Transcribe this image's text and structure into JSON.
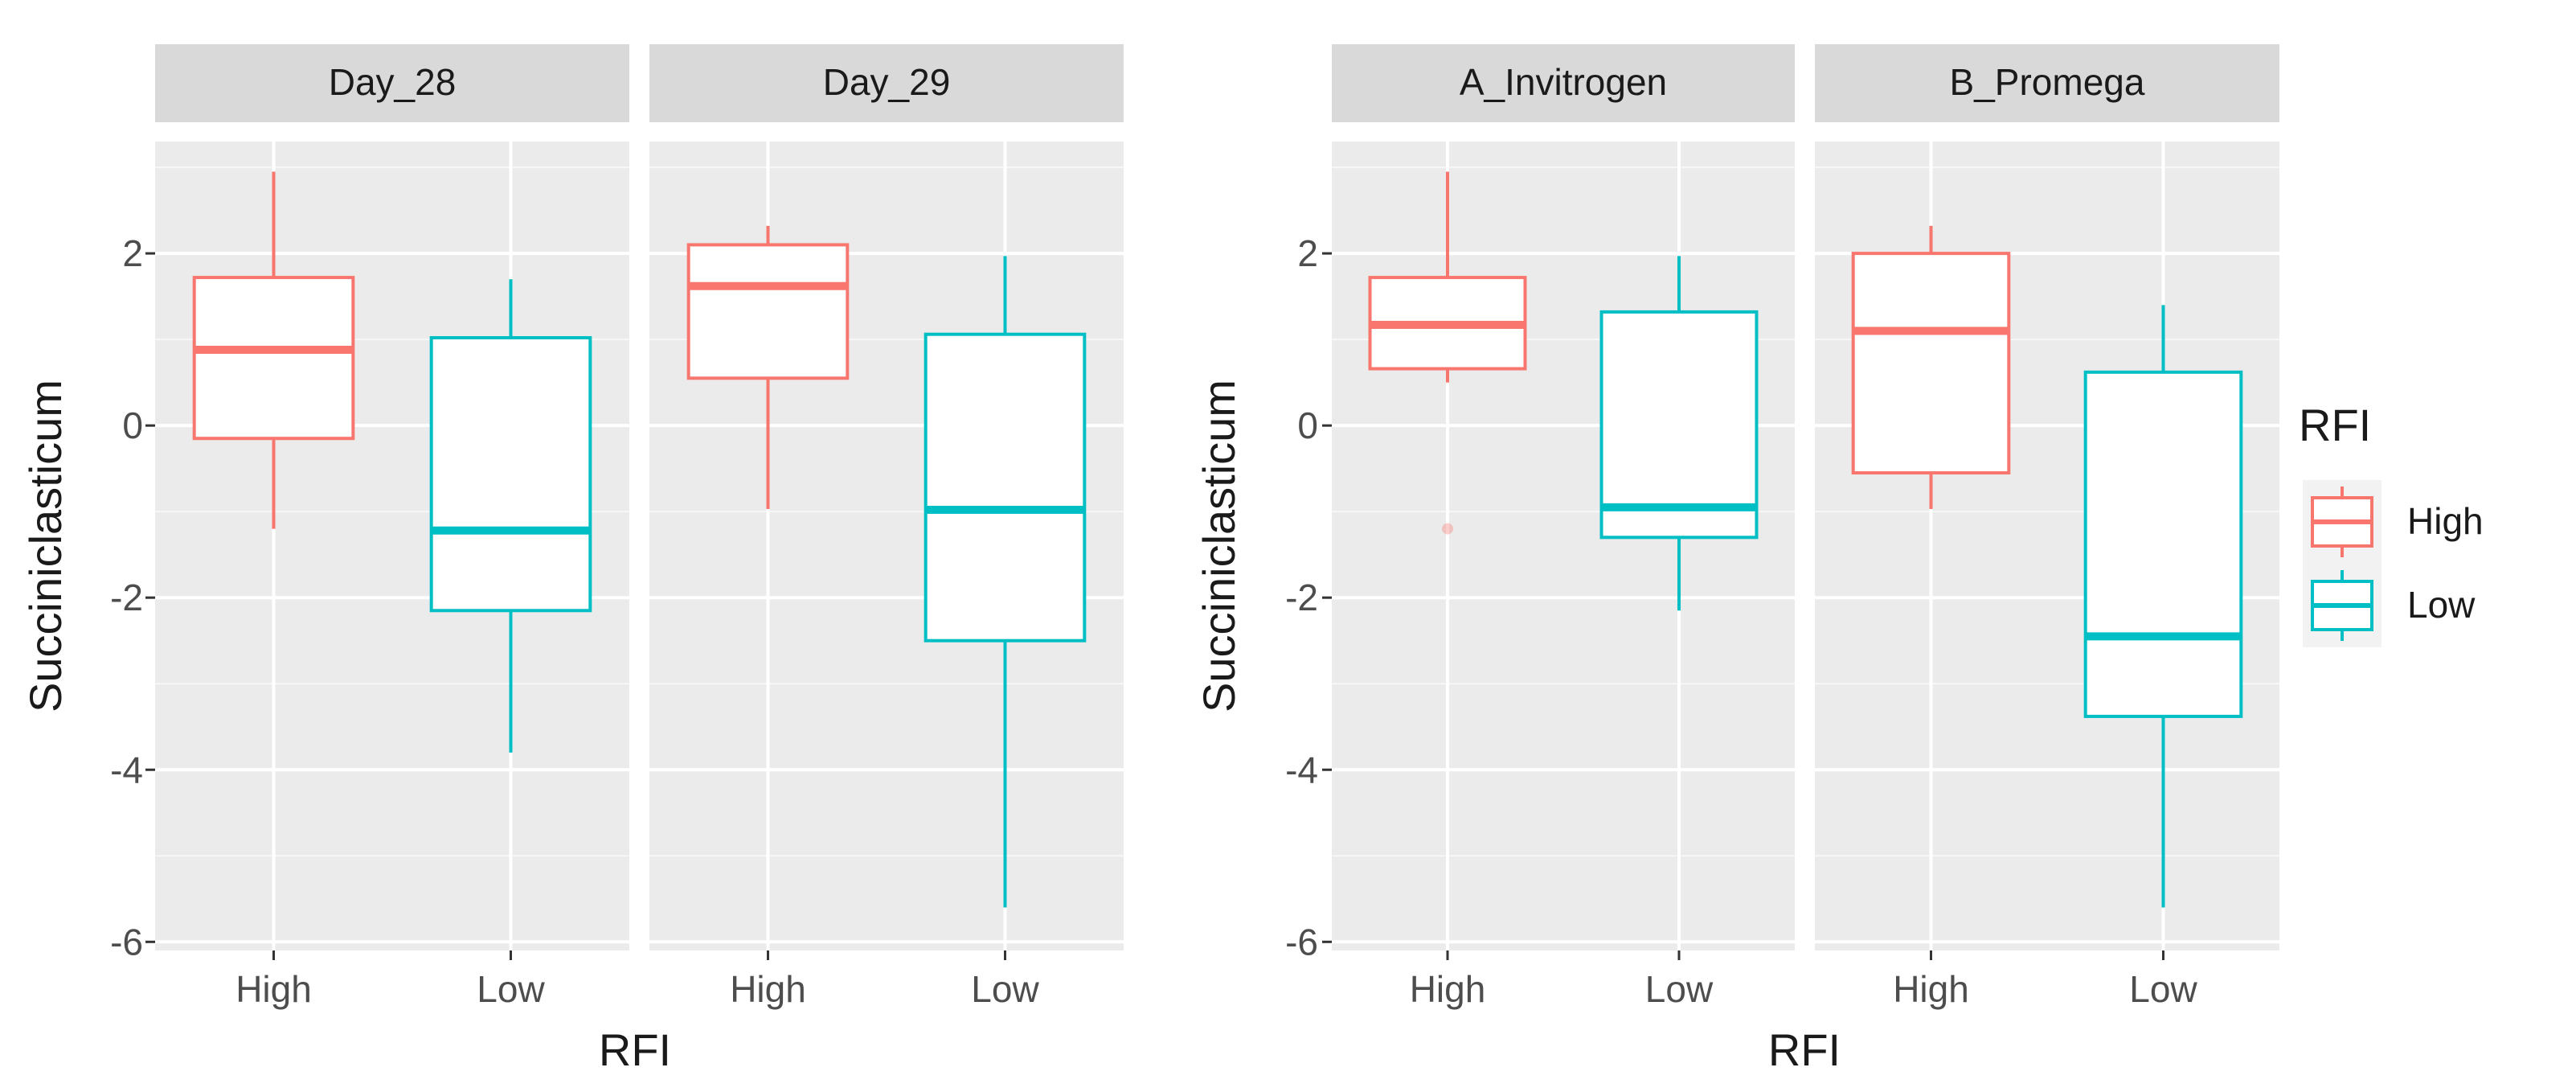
{
  "chart_data": [
    {
      "type": "boxplot",
      "ylabel": "Succiniclasticum",
      "xlabel": "RFI",
      "y_ticks": [
        "2",
        "0",
        "-2",
        "-4",
        "-6"
      ],
      "ylim": [
        -6.1,
        3.3
      ],
      "facets": [
        {
          "strip": "Day_28",
          "categories": [
            "High",
            "Low"
          ],
          "boxes": [
            {
              "group": "High",
              "min": -1.2,
              "q1": -0.15,
              "median": 0.88,
              "q3": 1.72,
              "max": 2.95
            },
            {
              "group": "Low",
              "min": -3.8,
              "q1": -2.15,
              "median": -1.22,
              "q3": 1.02,
              "max": 1.7
            }
          ]
        },
        {
          "strip": "Day_29",
          "categories": [
            "High",
            "Low"
          ],
          "boxes": [
            {
              "group": "High",
              "min": -0.97,
              "q1": 0.55,
              "median": 1.62,
              "q3": 2.1,
              "max": 2.32
            },
            {
              "group": "Low",
              "min": -5.6,
              "q1": -2.5,
              "median": -0.98,
              "q3": 1.06,
              "max": 1.97
            }
          ]
        }
      ]
    },
    {
      "type": "boxplot",
      "ylabel": "Succiniclasticum",
      "xlabel": "RFI",
      "y_ticks": [
        "2",
        "0",
        "-2",
        "-4",
        "-6"
      ],
      "ylim": [
        -6.1,
        3.3
      ],
      "facets": [
        {
          "strip": "A_Invitrogen",
          "categories": [
            "High",
            "Low"
          ],
          "boxes": [
            {
              "group": "High",
              "min": 0.5,
              "q1": 0.66,
              "median": 1.17,
              "q3": 1.72,
              "max": 2.95,
              "outliers": [
                -1.2
              ]
            },
            {
              "group": "Low",
              "min": -2.15,
              "q1": -1.3,
              "median": -0.95,
              "q3": 1.32,
              "max": 1.97
            }
          ]
        },
        {
          "strip": "B_Promega",
          "categories": [
            "High",
            "Low"
          ],
          "boxes": [
            {
              "group": "High",
              "min": -0.97,
              "q1": -0.55,
              "median": 1.1,
              "q3": 2.0,
              "max": 2.32
            },
            {
              "group": "Low",
              "min": -5.6,
              "q1": -3.38,
              "median": -2.45,
              "q3": 0.62,
              "max": 1.4
            }
          ]
        }
      ]
    }
  ],
  "legend": {
    "title": "RFI",
    "items": [
      {
        "label": "High",
        "color": "#F8766D"
      },
      {
        "label": "Low",
        "color": "#00BFC4"
      }
    ]
  },
  "colors": {
    "High": "#F8766D",
    "Low": "#00BFC4",
    "panel_bg": "#EBEBEB",
    "strip_bg": "#D9D9D9",
    "grid": "#FFFFFF",
    "text": "#4D4D4D",
    "title": "#1A1A1A"
  }
}
